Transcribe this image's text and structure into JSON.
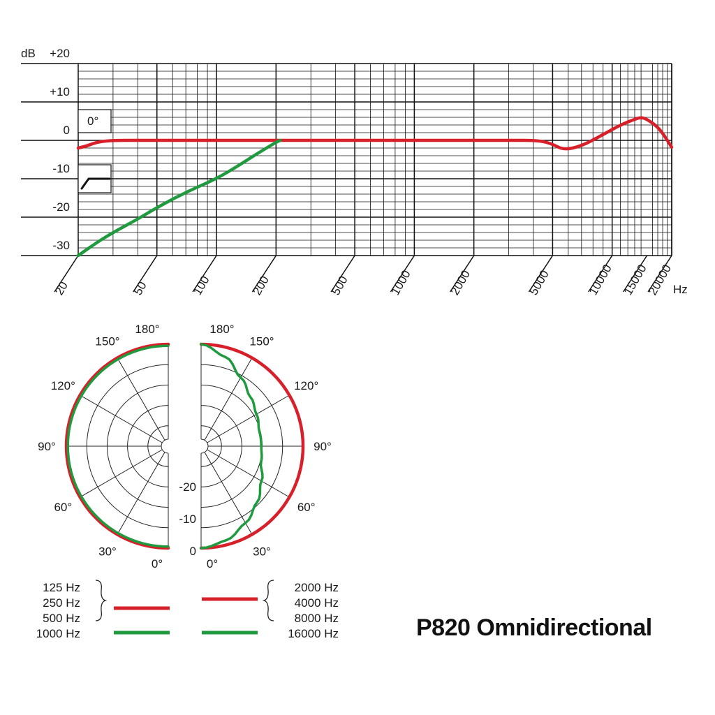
{
  "chart_data": [
    {
      "type": "line",
      "scale": "log-x",
      "y_unit_label": "dB",
      "x_unit_label": "Hz",
      "xlim": [
        20,
        20000
      ],
      "ylim": [
        -30,
        20
      ],
      "grid": true,
      "y_ticks": [
        {
          "value": 20,
          "label": "+20"
        },
        {
          "value": 10,
          "label": "+10"
        },
        {
          "value": 0,
          "label": "0"
        },
        {
          "value": -10,
          "label": "-10"
        },
        {
          "value": -20,
          "label": "-20"
        },
        {
          "value": -30,
          "label": "-30"
        }
      ],
      "x_ticks": [
        {
          "value": 20,
          "label": "20"
        },
        {
          "value": 50,
          "label": "50"
        },
        {
          "value": 100,
          "label": "100"
        },
        {
          "value": 200,
          "label": "200"
        },
        {
          "value": 500,
          "label": "500"
        },
        {
          "value": 1000,
          "label": "1000"
        },
        {
          "value": 2000,
          "label": "2000"
        },
        {
          "value": 5000,
          "label": "5000"
        },
        {
          "value": 10000,
          "label": "10000"
        },
        {
          "value": 15000,
          "label": "15000"
        },
        {
          "value": 20000,
          "label": "20000"
        }
      ],
      "angle_box_label": "0°",
      "series": [
        {
          "color": "#d8202a",
          "x": [
            20,
            22,
            25,
            30,
            40,
            100,
            200,
            1000,
            3000,
            4300,
            5000,
            5700,
            7000,
            9000,
            11000,
            13000,
            14000,
            15000,
            17000,
            18500,
            20000
          ],
          "y": [
            -2,
            -1.5,
            -0.4,
            0,
            0,
            0,
            0,
            0,
            0,
            0,
            -1,
            -2.5,
            -1.5,
            1.5,
            4,
            5.5,
            6,
            5.5,
            3.5,
            1,
            -1.8
          ]
        },
        {
          "color": "#1f9a3e",
          "x": [
            20,
            25,
            30,
            40,
            50,
            70,
            100,
            130,
            160,
            200,
            210
          ],
          "y": [
            -30,
            -26.5,
            -24,
            -20.5,
            -17.5,
            -13.5,
            -10,
            -6.5,
            -3.5,
            -0.5,
            0
          ]
        }
      ]
    },
    {
      "type": "polar",
      "angle_labels_left": [
        "180°",
        "150°",
        "120°",
        "90°",
        "60°",
        "30°",
        "0°"
      ],
      "angle_labels_right": [
        "180°",
        "150°",
        "120°",
        "90°",
        "60°",
        "30°",
        "0°"
      ],
      "radial_labels": [
        "-20",
        "-10",
        "0"
      ],
      "rlim": [
        -25,
        0
      ],
      "theta": [
        0,
        15,
        30,
        45,
        60,
        75,
        90,
        105,
        120,
        135,
        150,
        165,
        180
      ],
      "left_series": [
        {
          "color": "#d8202a",
          "r": [
            0,
            0,
            0,
            0,
            0,
            0,
            0,
            0,
            0,
            0,
            0,
            0,
            0
          ]
        },
        {
          "color": "#1f9a3e",
          "r": [
            -0.4,
            -0.4,
            -0.4,
            -0.4,
            -0.4,
            -0.4,
            -0.4,
            -0.4,
            -0.4,
            -0.4,
            -0.4,
            -0.4,
            -0.4
          ]
        }
      ],
      "right_series": [
        {
          "color": "#d8202a",
          "r": [
            0,
            0,
            0,
            0,
            0,
            0,
            0,
            0,
            0,
            0,
            0,
            0,
            0
          ]
        },
        {
          "color": "#1f9a3e",
          "r": [
            0,
            -1.2,
            -3.5,
            -6,
            -8.5,
            -10.5,
            -11,
            -11,
            -10,
            -8.5,
            -6,
            -2.5,
            0
          ]
        }
      ]
    }
  ],
  "legend": {
    "left_group": [
      "125 Hz",
      "250 Hz",
      "500 Hz"
    ],
    "left_single": "1000 Hz",
    "right_group": [
      "2000 Hz",
      "4000 Hz",
      "8000 Hz"
    ],
    "right_single": "16000 Hz",
    "colors": {
      "red": "#d8202a",
      "green": "#1f9a3e"
    }
  },
  "title": "P820 Omnidirectional"
}
